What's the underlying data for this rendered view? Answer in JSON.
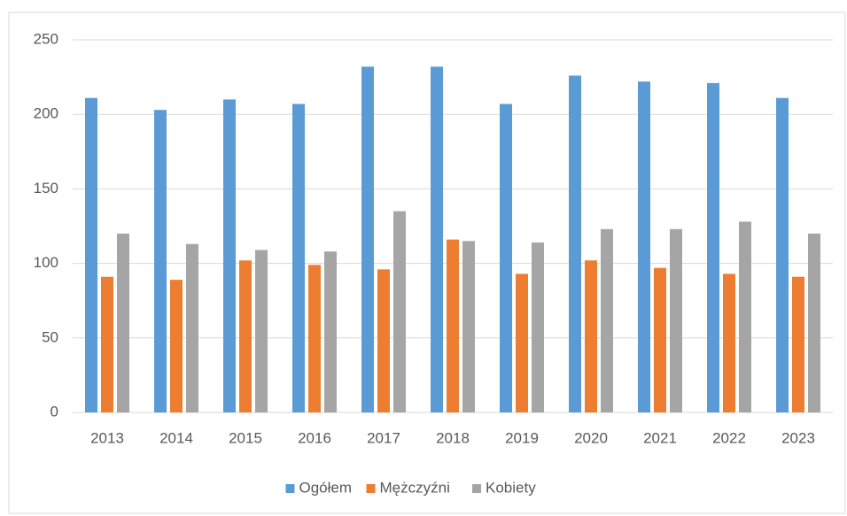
{
  "chart_data": {
    "type": "bar",
    "categories": [
      "2013",
      "2014",
      "2015",
      "2016",
      "2017",
      "2018",
      "2019",
      "2020",
      "2021",
      "2022",
      "2023"
    ],
    "series": [
      {
        "name": "Ogółem",
        "color": "#5b9bd5",
        "values": [
          211,
          203,
          210,
          207,
          232,
          232,
          207,
          226,
          222,
          221,
          211
        ]
      },
      {
        "name": "Mężczyźni",
        "color": "#ed7d31",
        "values": [
          91,
          89,
          102,
          99,
          96,
          116,
          93,
          102,
          97,
          93,
          91
        ]
      },
      {
        "name": "Kobiety",
        "color": "#a5a5a5",
        "values": [
          120,
          113,
          109,
          108,
          135,
          115,
          114,
          123,
          123,
          128,
          120
        ]
      }
    ],
    "ylim": [
      0,
      250
    ],
    "yticks": [
      0,
      50,
      100,
      150,
      200,
      250
    ],
    "grid": true,
    "legend": "bottom"
  }
}
